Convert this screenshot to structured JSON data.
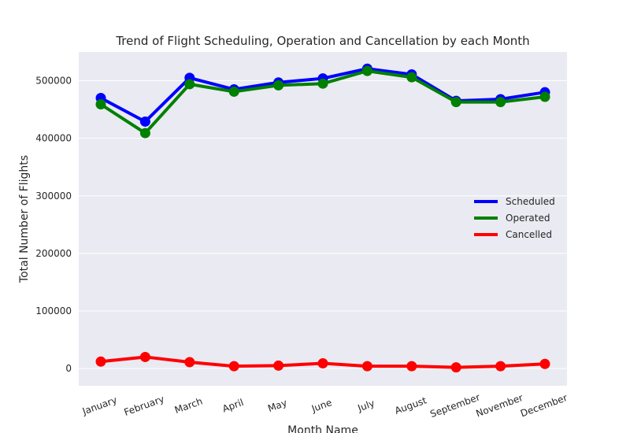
{
  "chart_data": {
    "type": "line",
    "title": "Trend of Flight Scheduling, Operation  and Cancellation by each Month",
    "xlabel": "Month Name",
    "ylabel": "Total Number of Flights",
    "categories": [
      "January",
      "February",
      "March",
      "April",
      "May",
      "June",
      "July",
      "August",
      "September",
      "November",
      "December"
    ],
    "series": [
      {
        "name": "Scheduled",
        "color": "#0000ff",
        "values": [
          470000,
          429000,
          505000,
          485000,
          497000,
          504000,
          521000,
          511000,
          465000,
          468000,
          480000
        ]
      },
      {
        "name": "Operated",
        "color": "#008000",
        "values": [
          459000,
          409000,
          494000,
          481000,
          492000,
          495000,
          517000,
          506000,
          463000,
          463000,
          472000
        ]
      },
      {
        "name": "Cancelled",
        "color": "#ff0000",
        "values": [
          12000,
          20000,
          11000,
          4000,
          5000,
          9000,
          4000,
          4000,
          2000,
          4000,
          8000
        ]
      }
    ],
    "ylim": [
      -30000,
      550000
    ],
    "yticks": [
      "0",
      "100000",
      "200000",
      "300000",
      "400000",
      "500000"
    ],
    "grid": true,
    "legend_position": "center-right"
  }
}
